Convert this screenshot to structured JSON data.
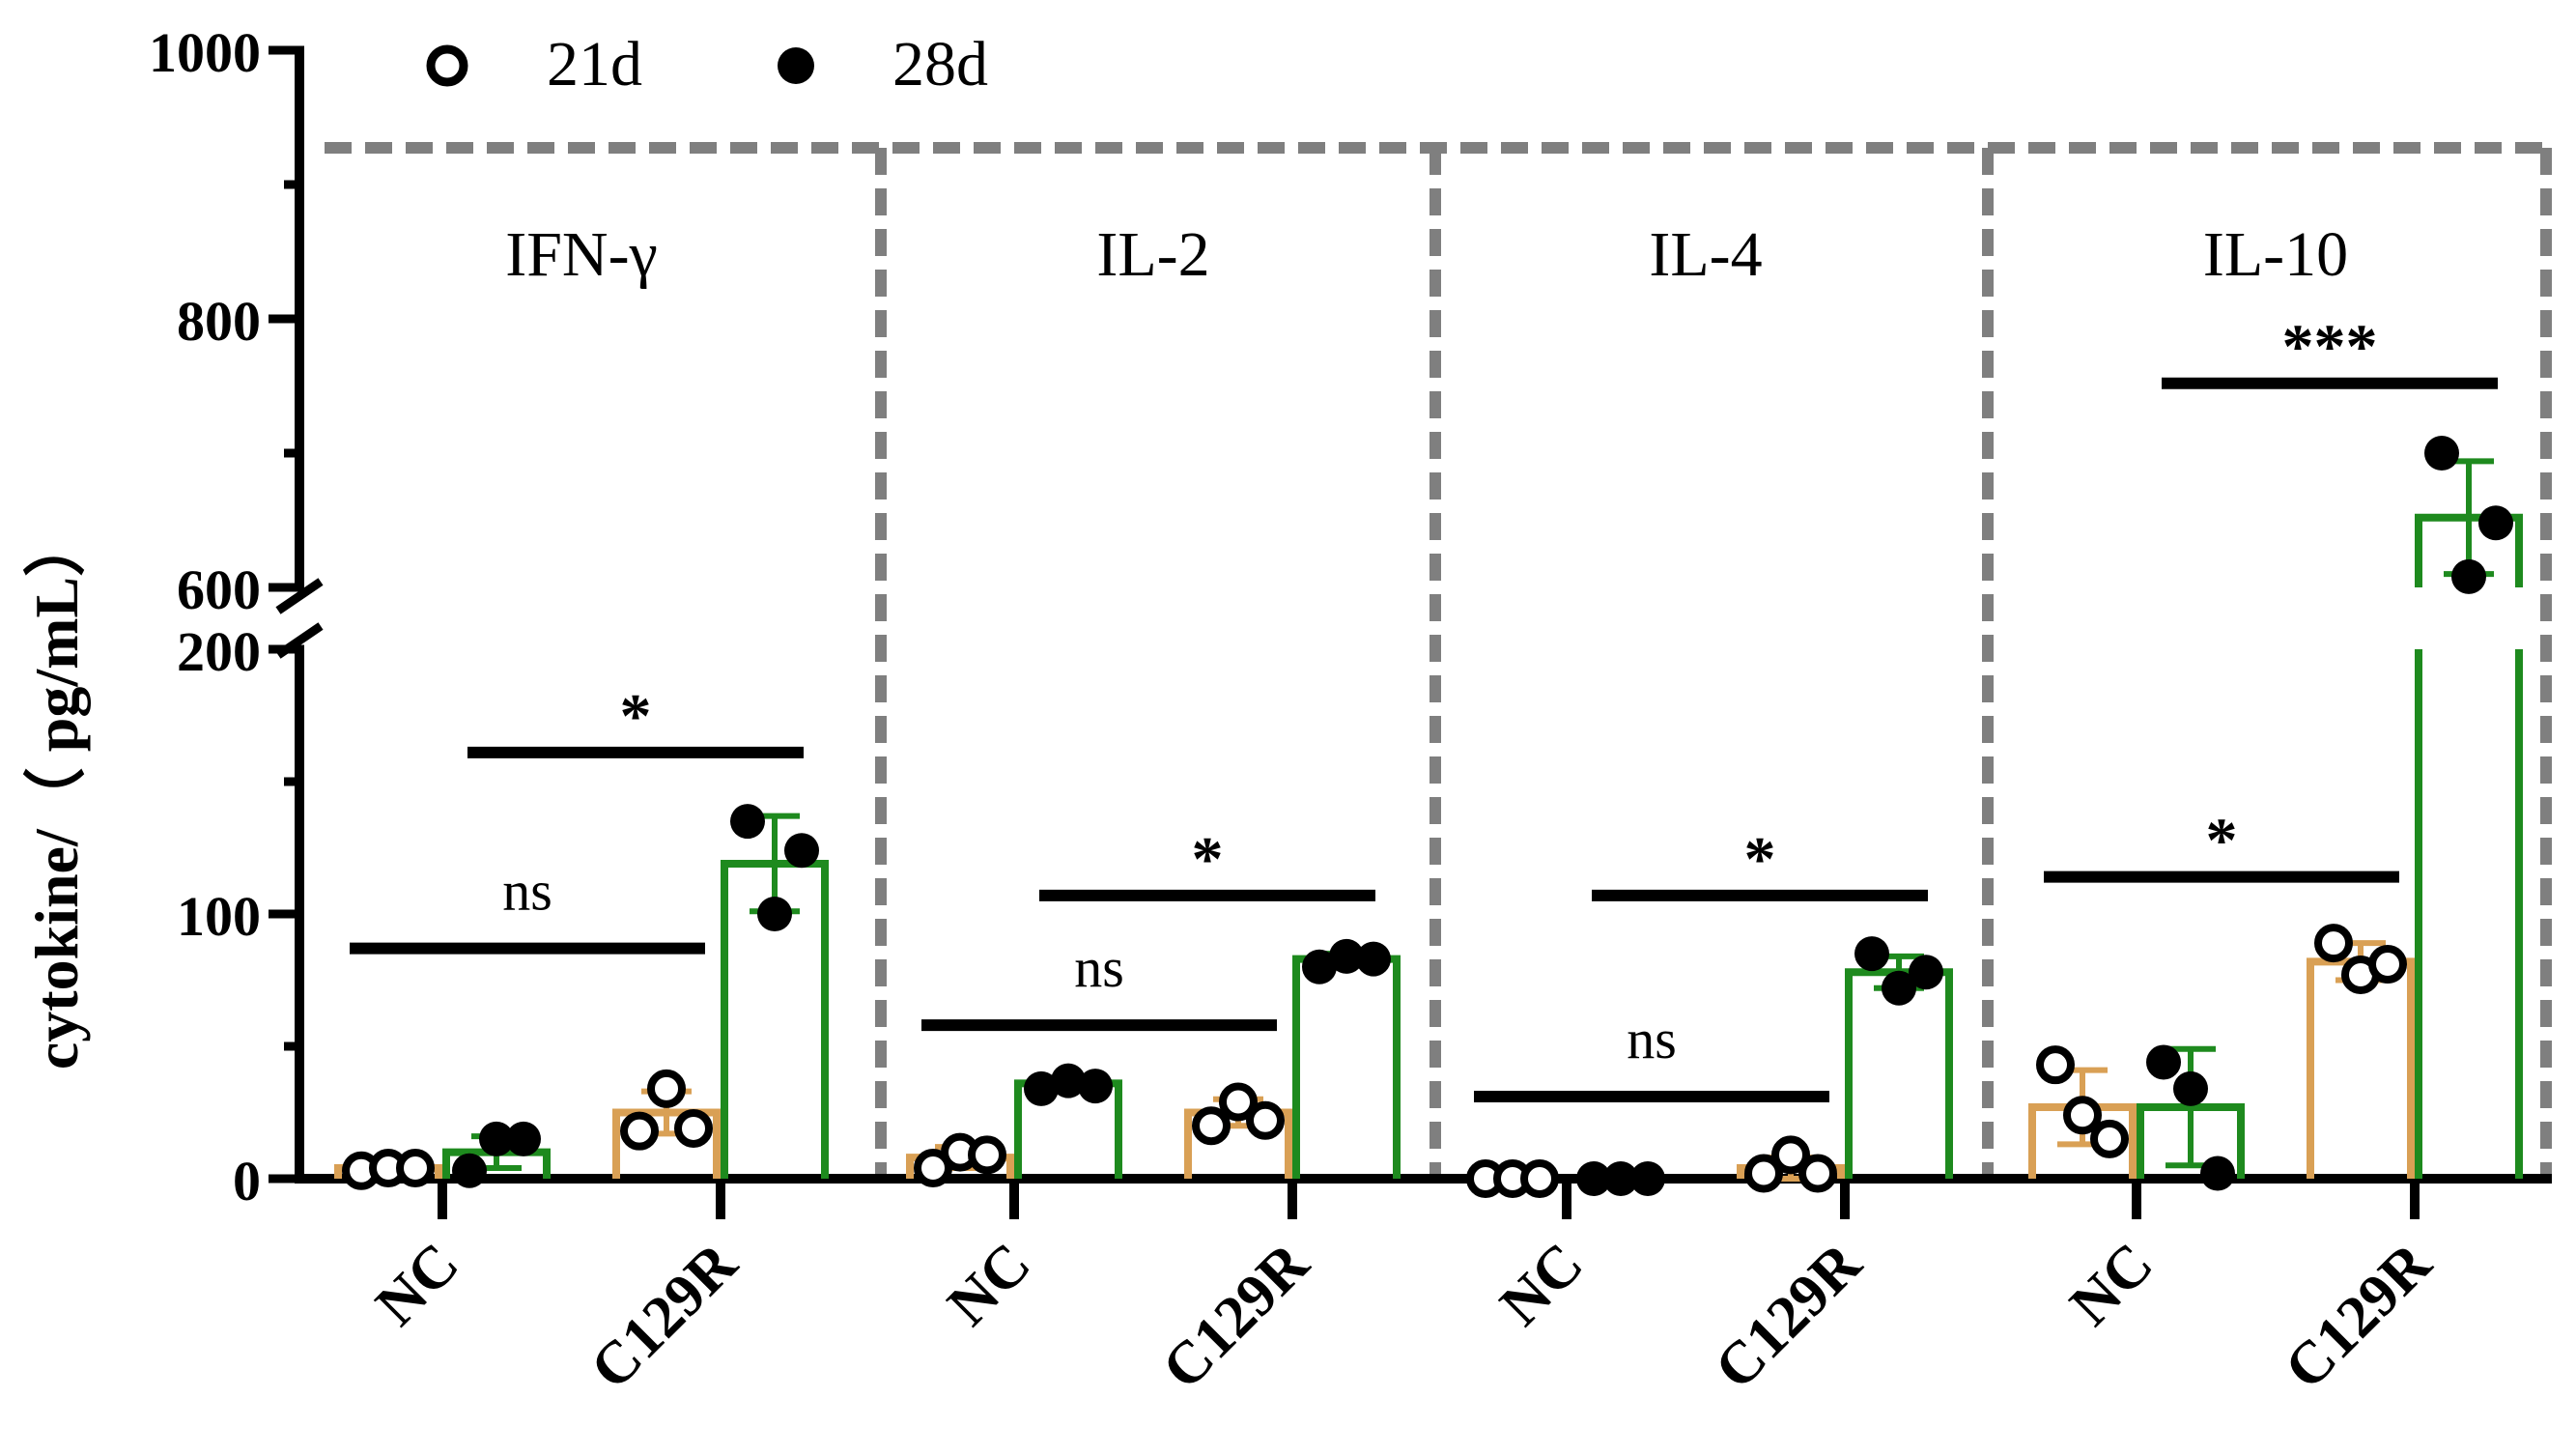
{
  "chart_data": {
    "type": "bar",
    "ylabel": "cytokine/（ pg/mL）",
    "y_axis": {
      "broken": true,
      "lower_range": [
        0,
        200
      ],
      "upper_range": [
        600,
        1000
      ],
      "tick_labels": [
        "0",
        "100",
        "200",
        "600",
        "800",
        "1000"
      ]
    },
    "legend": {
      "position": "top-left",
      "entries": [
        "21d",
        "28d"
      ]
    },
    "series": [
      {
        "name": "21d",
        "marker": "open-circle",
        "bar_color": "#d9a055"
      },
      {
        "name": "28d",
        "marker": "filled-circle",
        "bar_color": "#1e8a1e"
      }
    ],
    "panels": [
      {
        "title": "IFN-γ",
        "groups": [
          {
            "label": "NC",
            "bars": [
              {
                "series": "21d",
                "mean": 4,
                "sd": 2,
                "points": [
                  3,
                  4,
                  4
                ]
              },
              {
                "series": "28d",
                "mean": 10,
                "sd": 6,
                "points": [
                  3,
                  15,
                  15
                ]
              }
            ]
          },
          {
            "label": "C129R",
            "bars": [
              {
                "series": "21d",
                "mean": 25,
                "sd": 8,
                "points": [
                  18,
                  34,
                  19
                ]
              },
              {
                "series": "28d",
                "mean": 119,
                "sd": 18,
                "points": [
                  135,
                  100,
                  124
                ]
              }
            ]
          }
        ],
        "comparisons": [
          {
            "from": "NC-21d",
            "to": "C129R-21d",
            "label": "ns",
            "y": 87
          },
          {
            "from": "NC-28d",
            "to": "C129R-28d",
            "label": "*",
            "y": 161
          }
        ]
      },
      {
        "title": "IL-2",
        "groups": [
          {
            "label": "NC",
            "bars": [
              {
                "series": "21d",
                "mean": 8,
                "sd": 4,
                "points": [
                  4,
                  10,
                  9
                ]
              },
              {
                "series": "28d",
                "mean": 36,
                "sd": 2,
                "points": [
                  34,
                  37,
                  35
                ]
              }
            ]
          },
          {
            "label": "C129R",
            "bars": [
              {
                "series": "21d",
                "mean": 25,
                "sd": 5,
                "points": [
                  20,
                  29,
                  22
                ]
              },
              {
                "series": "28d",
                "mean": 83,
                "sd": 2,
                "points": [
                  80,
                  84,
                  83
                ]
              }
            ]
          }
        ],
        "comparisons": [
          {
            "from": "NC-21d",
            "to": "C129R-21d",
            "label": "ns",
            "y": 58
          },
          {
            "from": "NC-28d",
            "to": "C129R-28d",
            "label": "*",
            "y": 107
          }
        ]
      },
      {
        "title": "IL-4",
        "groups": [
          {
            "label": "NC",
            "bars": [
              {
                "series": "21d",
                "mean": 0,
                "sd": 0,
                "points": [
                  0,
                  0,
                  0
                ]
              },
              {
                "series": "28d",
                "mean": 0,
                "sd": 0,
                "points": [
                  0,
                  0,
                  0
                ]
              }
            ]
          },
          {
            "label": "C129R",
            "bars": [
              {
                "series": "21d",
                "mean": 4,
                "sd": 4,
                "points": [
                  2,
                  9,
                  2
                ]
              },
              {
                "series": "28d",
                "mean": 78,
                "sd": 6,
                "points": [
                  85,
                  72,
                  78
                ]
              }
            ]
          }
        ],
        "comparisons": [
          {
            "from": "NC-21d",
            "to": "C129R-21d",
            "label": "ns",
            "y": 31
          },
          {
            "from": "NC-28d",
            "to": "C129R-28d",
            "label": "*",
            "y": 107
          }
        ]
      },
      {
        "title": "IL-10",
        "groups": [
          {
            "label": "NC",
            "bars": [
              {
                "series": "21d",
                "mean": 27,
                "sd": 14,
                "points": [
                  43,
                  24,
                  15
                ]
              },
              {
                "series": "28d",
                "mean": 27,
                "sd": 22,
                "points": [
                  44,
                  34,
                  2
                ]
              }
            ]
          },
          {
            "label": "C129R",
            "bars": [
              {
                "series": "21d",
                "mean": 82,
                "sd": 7,
                "points": [
                  89,
                  77,
                  81
                ]
              },
              {
                "series": "28d",
                "mean": 652,
                "sd": 42,
                "points": [
                  700,
                  608,
                  648
                ]
              }
            ]
          }
        ],
        "comparisons": [
          {
            "from": "NC-21d",
            "to": "C129R-21d",
            "label": "*",
            "y": 114
          },
          {
            "from": "NC-28d",
            "to": "C129R-28d",
            "label": "***",
            "y": 752
          }
        ]
      }
    ]
  }
}
